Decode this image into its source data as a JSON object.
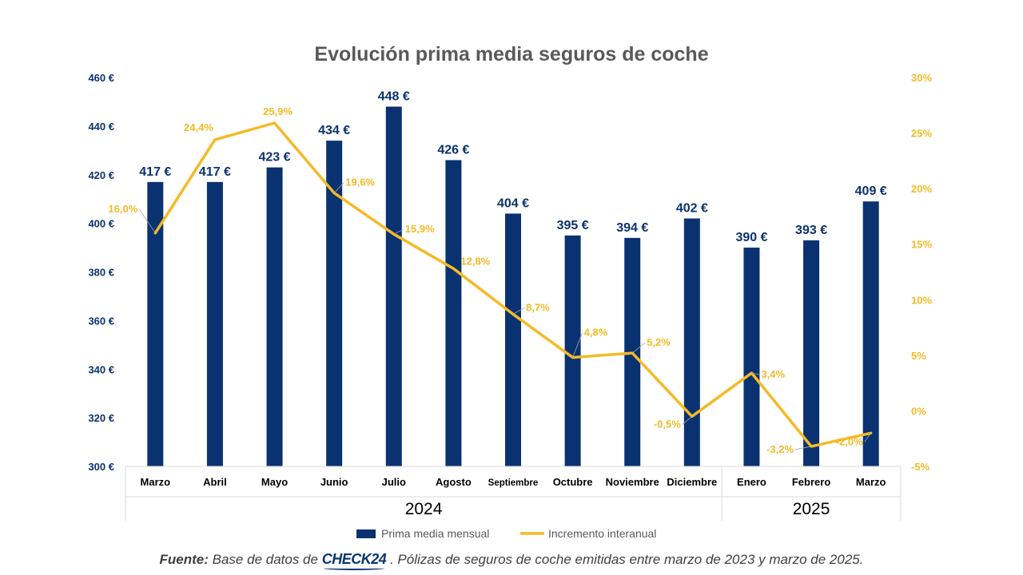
{
  "chart_data": {
    "type": "bar+line",
    "title": "Evolución prima media seguros de coche",
    "categories": [
      "Marzo",
      "Abril",
      "Mayo",
      "Junio",
      "Julio",
      "Agosto",
      "Septiembre",
      "Octubre",
      "Noviembre",
      "Diciembre",
      "Enero",
      "Febrero",
      "Marzo"
    ],
    "year_groups": [
      {
        "label": "2024",
        "start_index": 0,
        "end_index": 9
      },
      {
        "label": "2025",
        "start_index": 10,
        "end_index": 12
      }
    ],
    "series": [
      {
        "name": "Prima media mensual",
        "type": "bar",
        "axis": "left",
        "color": "#0B3270",
        "values": [
          417,
          417,
          423,
          434,
          448,
          426,
          404,
          395,
          394,
          402,
          390,
          393,
          409
        ],
        "labels": [
          "417 €",
          "417 €",
          "423 €",
          "434 €",
          "448 €",
          "426 €",
          "404 €",
          "395 €",
          "394 €",
          "402 €",
          "390 €",
          "393 €",
          "409 €"
        ]
      },
      {
        "name": "Incremento interanual",
        "type": "line",
        "axis": "right",
        "color": "#F4BA26",
        "values": [
          16.0,
          24.4,
          25.9,
          19.6,
          15.9,
          12.8,
          8.7,
          4.8,
          5.2,
          -0.5,
          3.4,
          -3.2,
          -2.0
        ],
        "labels": [
          "16,0%",
          "24,4%",
          "25,9%",
          "19,6%",
          "15,9%",
          "12,8%",
          "8,7%",
          "4,8%",
          "5,2%",
          "-0,5%",
          "3,4%",
          "-3,2%",
          "-2,0%"
        ]
      }
    ],
    "y_left": {
      "min": 300,
      "max": 460,
      "step": 20,
      "ticks": [
        "300 €",
        "320 €",
        "340 €",
        "360 €",
        "380 €",
        "400 €",
        "420 €",
        "440 €",
        "460 €"
      ],
      "color": "#0B3270"
    },
    "y_right": {
      "min": -5,
      "max": 30,
      "step": 5,
      "ticks": [
        "-5%",
        "0%",
        "5%",
        "10%",
        "15%",
        "20%",
        "25%",
        "30%"
      ],
      "color": "#F4BA26"
    },
    "grid": false,
    "legend_position": "bottom"
  },
  "source": {
    "label": "Fuente:",
    "text_before": "Base de datos de",
    "brand": "CHECK24",
    "text_after": ". Pólizas de seguros de coche emitidas entre marzo de 2023 y marzo de 2025."
  }
}
